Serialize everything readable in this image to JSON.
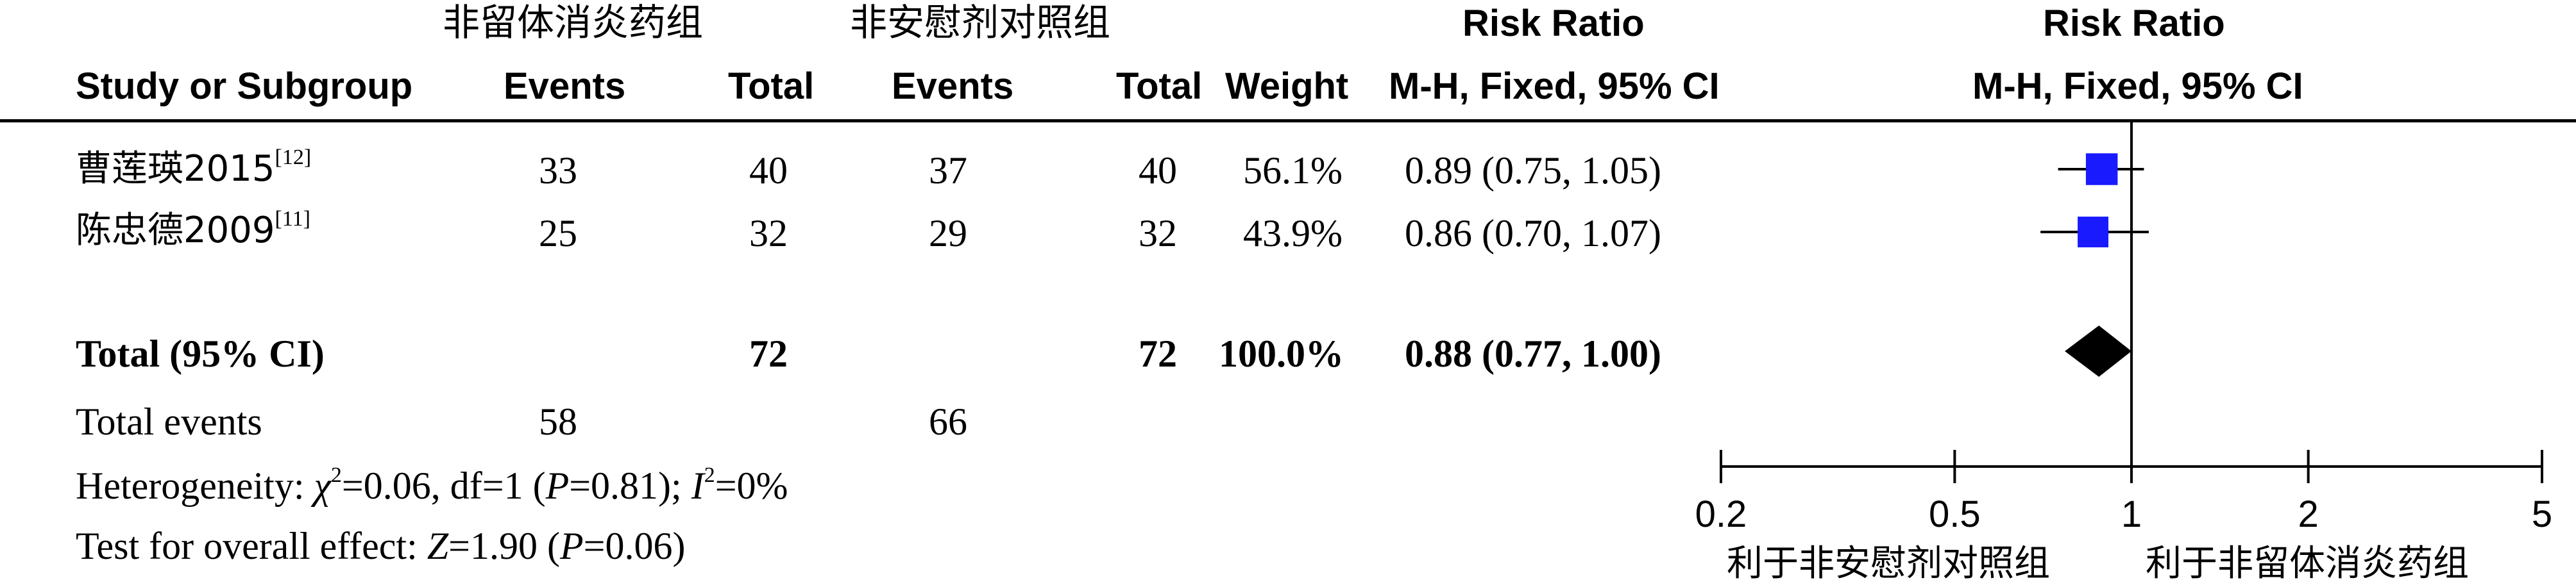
{
  "group_labels": {
    "experimental": "非留体消炎药组",
    "control": "非安慰剂对照组"
  },
  "columns": {
    "study": "Study or Subgroup",
    "exp_events": "Events",
    "exp_total": "Total",
    "ctl_events": "Events",
    "ctl_total": "Total",
    "weight": "Weight",
    "rr_title": "Risk Ratio",
    "rr_method": "M-H, Fixed, 95% CI"
  },
  "plot_header": {
    "title": "Risk Ratio",
    "method": "M-H, Fixed, 95% CI"
  },
  "studies": [
    {
      "name": "曹莲瑛2015",
      "ref": "[12]",
      "exp_events": "33",
      "exp_total": "40",
      "ctl_events": "37",
      "ctl_total": "40",
      "weight": "56.1%",
      "ci_text": "0.89 (0.75, 1.05)"
    },
    {
      "name": "陈忠德2009",
      "ref": "[11]",
      "exp_events": "25",
      "exp_total": "32",
      "ctl_events": "29",
      "ctl_total": "32",
      "weight": "43.9%",
      "ci_text": "0.86 (0.70, 1.07)"
    }
  ],
  "total": {
    "label": "Total (95% CI)",
    "exp_total": "72",
    "ctl_total": "72",
    "weight": "100.0%",
    "ci_text": "0.88 (0.77, 1.00)"
  },
  "total_events": {
    "label": "Total events",
    "exp_events": "58",
    "ctl_events": "66"
  },
  "heterogeneity": {
    "prefix": "Heterogeneity: ",
    "chi_symbol": "χ",
    "chi_value": "=0.06, df=1 (",
    "p_symbol": "P",
    "p_value": "=0.81); ",
    "i_symbol": "I",
    "i_value": "=0%"
  },
  "overall_effect": {
    "prefix": "Test for overall effect: ",
    "z_symbol": "Z",
    "z_value": "=1.90 (",
    "p_symbol": "P",
    "p_value": "=0.06)"
  },
  "axis_labels": {
    "favours_left": "利于非安慰剂对照组",
    "favours_right": "利于非留体消炎药组"
  },
  "colors": {
    "study_marker": "#1a1aff",
    "diamond": "#000000",
    "line": "#000000"
  },
  "chart_data": {
    "type": "forest",
    "scale": "log",
    "xlim": [
      0.2,
      5
    ],
    "ticks": [
      0.2,
      0.5,
      1,
      2,
      5
    ],
    "tick_labels": [
      "0.2",
      "0.5",
      "1",
      "2",
      "5"
    ],
    "null_value": 1,
    "studies": [
      {
        "name": "曹莲瑛2015",
        "rr": 0.89,
        "lower": 0.75,
        "upper": 1.05,
        "weight": 56.1
      },
      {
        "name": "陈忠德2009",
        "rr": 0.86,
        "lower": 0.7,
        "upper": 1.07,
        "weight": 43.9
      }
    ],
    "pooled": {
      "rr": 0.88,
      "lower": 0.77,
      "upper": 1.0
    }
  }
}
